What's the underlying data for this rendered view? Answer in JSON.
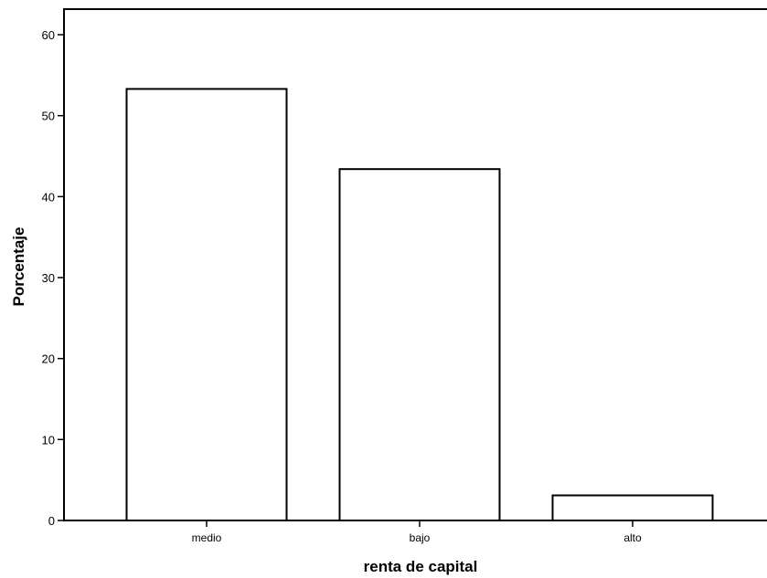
{
  "chart_data": {
    "type": "bar",
    "categories": [
      "medio",
      "bajo",
      "alto"
    ],
    "values": [
      53.3,
      43.4,
      3.1
    ],
    "xlabel": "renta de capital",
    "ylabel": "Porcentaje",
    "ylim": [
      0,
      60
    ],
    "yticks": [
      0,
      10,
      20,
      30,
      40,
      50,
      60
    ],
    "grid": false,
    "bar_fill": "#ffffff",
    "bar_stroke": "#000000"
  }
}
